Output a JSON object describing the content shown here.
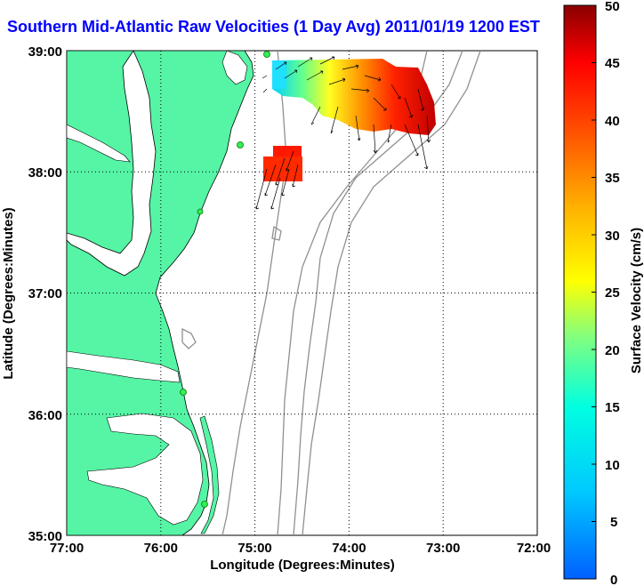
{
  "title": "Southern Mid-Atlantic Raw Velocities (1 Day Avg) 2011/01/19 1200 EST",
  "map": {
    "x_label": "Longitude (Degrees:Minutes)",
    "y_label": "Latitude (Degrees:Minutes)",
    "x_ticks": [
      "77:00",
      "76:00",
      "75:00",
      "74:00",
      "73:00",
      "72:00"
    ],
    "y_ticks": [
      "39:00",
      "38:00",
      "37:00",
      "36:00",
      "35:00"
    ],
    "land_color": "#55f5a5",
    "coast_color": "#000000",
    "bathymetry_color": "#909090",
    "grid": "dotted",
    "sites": [
      "site-1",
      "site-2",
      "site-3",
      "site-4",
      "site-5"
    ]
  },
  "colorbar": {
    "label": "Surface Velocity (cm/s)",
    "ticks": [
      "50",
      "45",
      "40",
      "35",
      "30",
      "25",
      "20",
      "15",
      "10",
      "5",
      "0"
    ],
    "min": 0,
    "max": 50,
    "stops": [
      "#0060ff",
      "#00c8ff",
      "#00ffe0",
      "#80ff80",
      "#ffff00",
      "#ffb000",
      "#ff5000",
      "#ff0000",
      "#8a0000"
    ]
  },
  "velocity_fields": [
    {
      "name": "north-patch",
      "speed_range_cms": [
        5,
        50
      ]
    },
    {
      "name": "south-patch",
      "speed_range_cms": [
        40,
        48
      ]
    }
  ]
}
